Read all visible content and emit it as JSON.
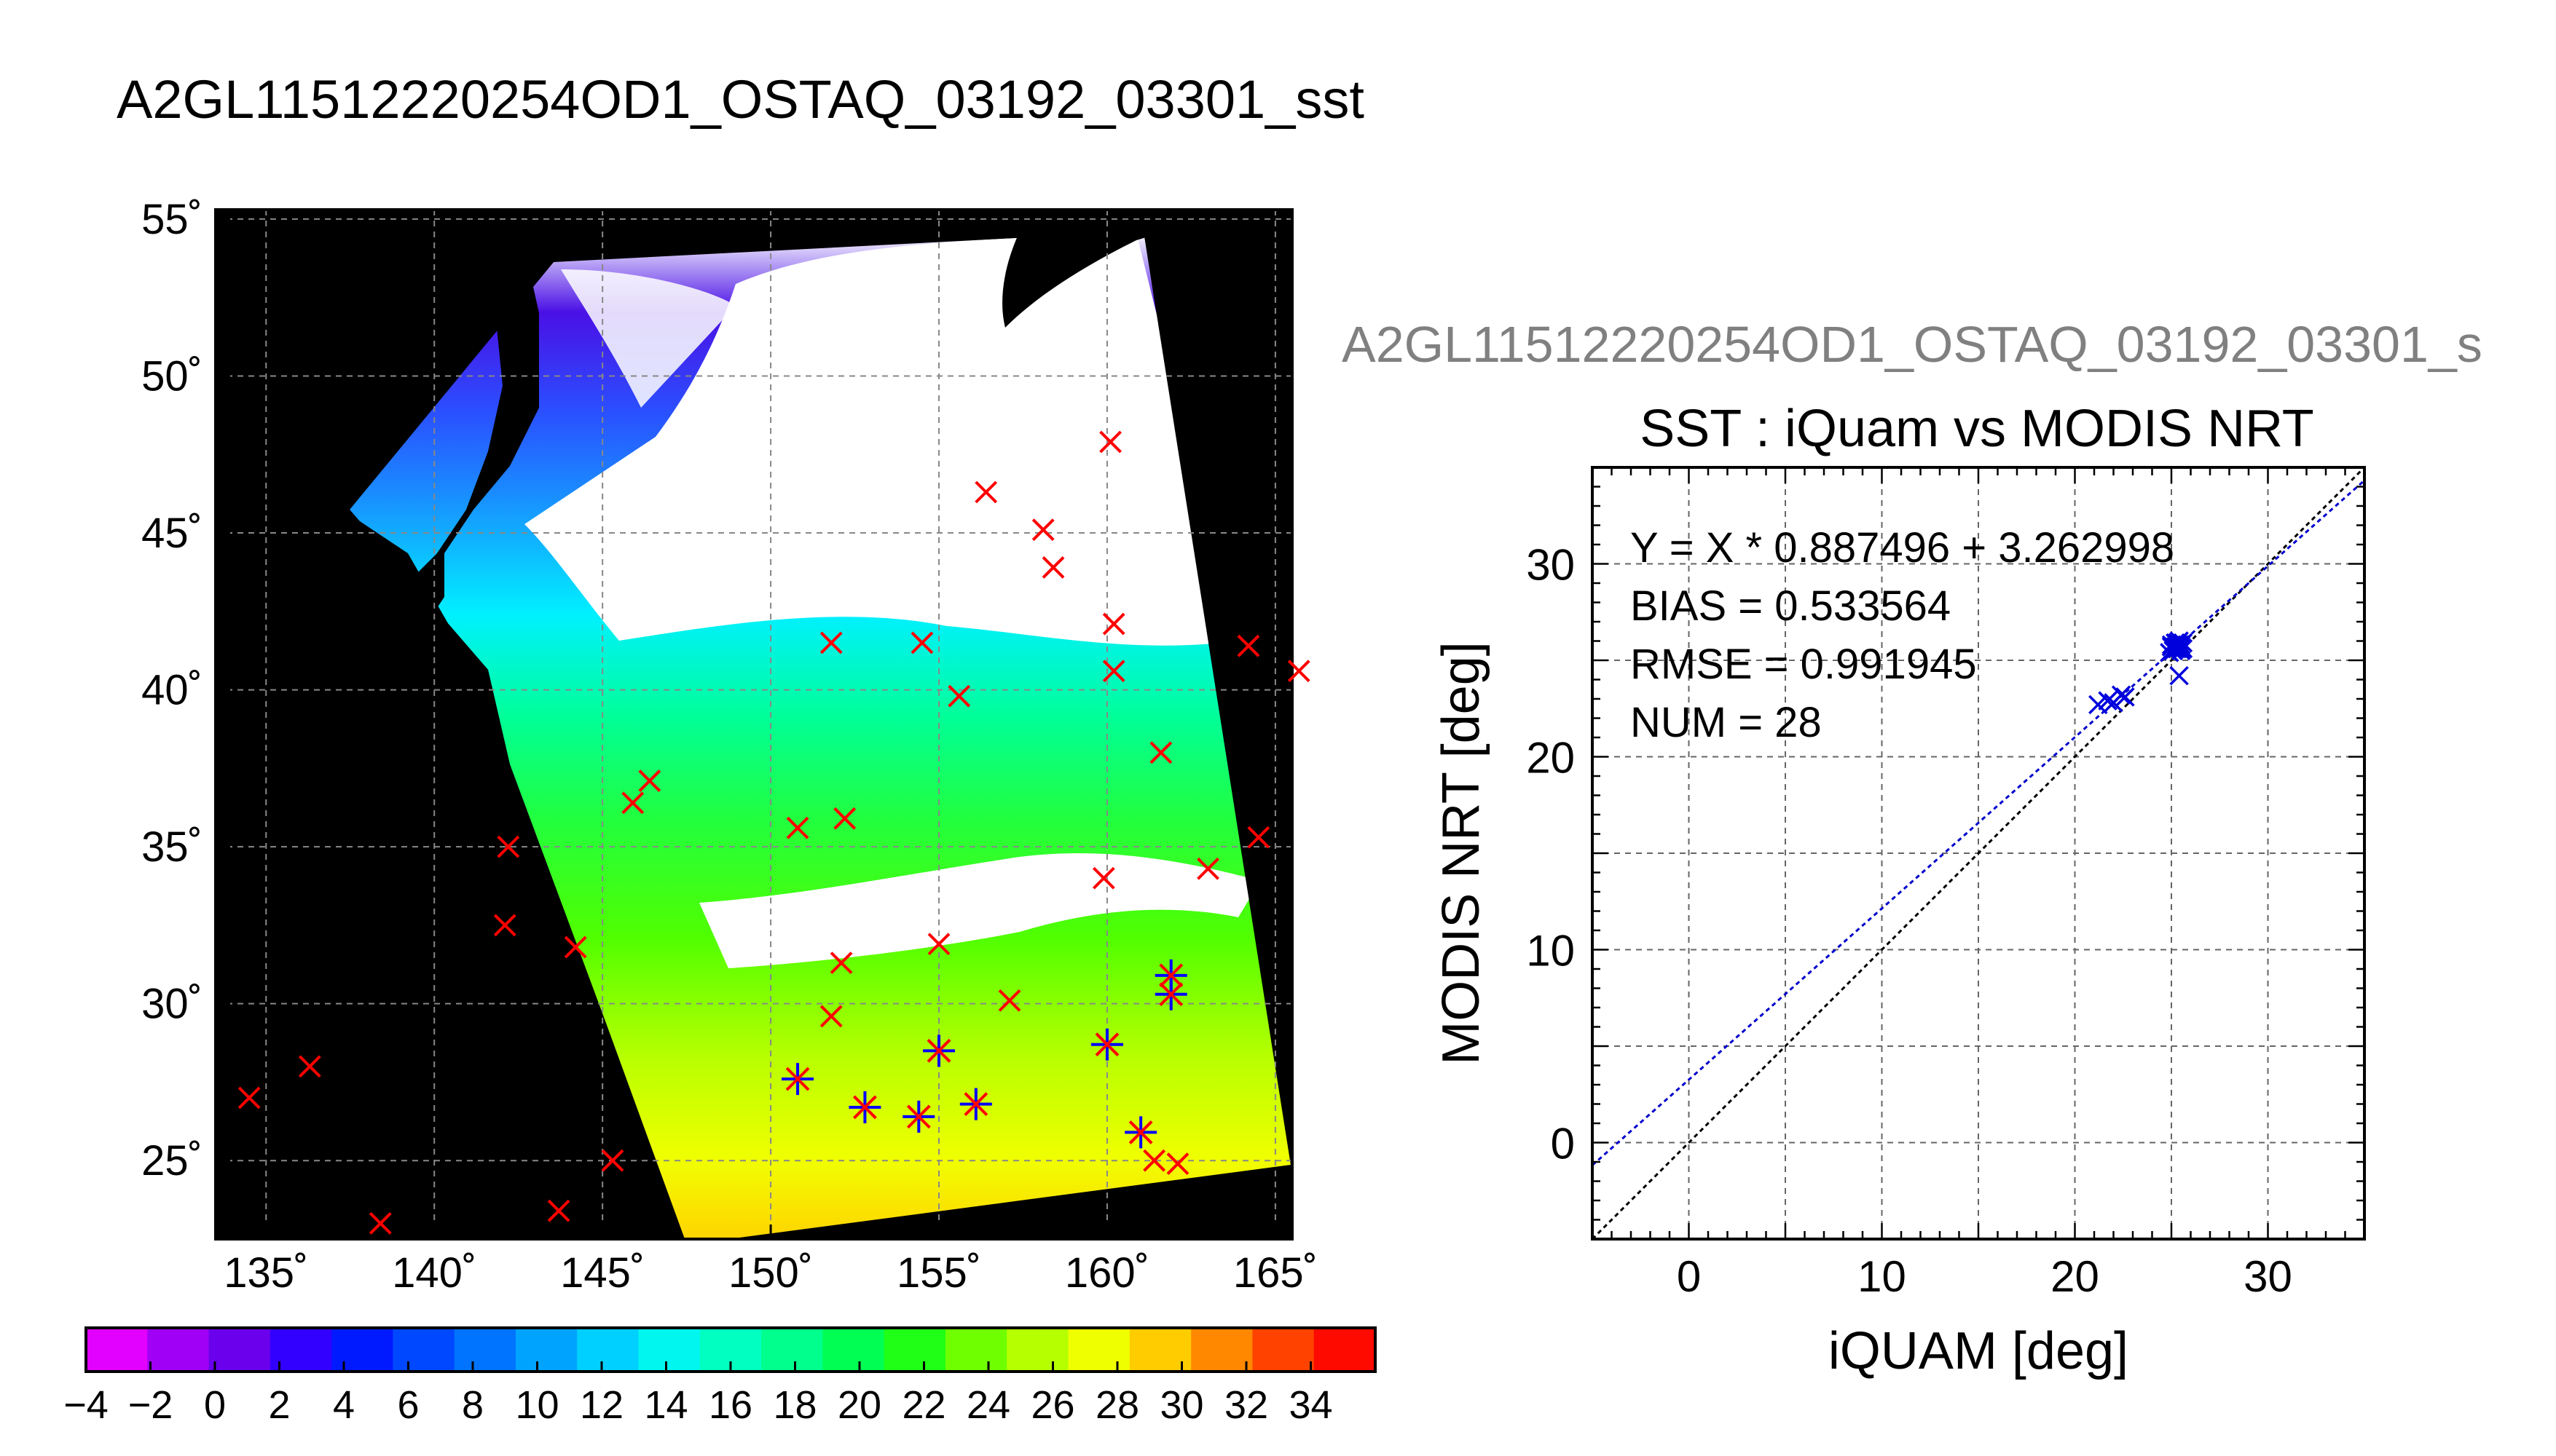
{
  "main_title": "A2GL11512220254OD1_OSTAQ_03192_03301_sst",
  "map": {
    "lon_range": [
      133.5,
      165.5
    ],
    "lat_range": [
      22.5,
      55.3
    ],
    "lon_ticks": [
      135,
      140,
      145,
      150,
      155,
      160,
      165
    ],
    "lat_ticks": [
      25,
      30,
      35,
      40,
      45,
      50,
      55
    ],
    "lon_tick_labels": [
      "135˚",
      "140˚",
      "145˚",
      "150˚",
      "155˚",
      "160˚",
      "165˚"
    ],
    "lat_tick_labels": [
      "25˚",
      "30˚",
      "35˚",
      "40˚",
      "45˚",
      "50˚",
      "55˚"
    ],
    "grid": true,
    "outside_color": "#ffffff",
    "land_color": "#000000",
    "cloud_color": "#ffffff",
    "marker_color_outside": "#ff0000",
    "marker_color_matched": "#0000ff",
    "matchup_markers": [
      [
        134.5,
        27.0
      ],
      [
        136.3,
        28.0
      ],
      [
        138.4,
        23.0
      ],
      [
        143.7,
        23.4
      ],
      [
        145.3,
        25.0
      ],
      [
        144.2,
        31.8
      ],
      [
        142.1,
        32.5
      ],
      [
        142.2,
        35.0
      ],
      [
        145.9,
        36.4
      ],
      [
        146.4,
        37.1
      ],
      [
        150.8,
        35.6
      ],
      [
        152.2,
        35.9
      ],
      [
        151.8,
        41.5
      ],
      [
        154.5,
        41.5
      ],
      [
        155.6,
        39.8
      ],
      [
        156.4,
        46.3
      ],
      [
        158.1,
        45.1
      ],
      [
        158.4,
        43.9
      ],
      [
        160.1,
        47.9
      ],
      [
        160.2,
        42.1
      ],
      [
        160.2,
        40.6
      ],
      [
        161.6,
        38.0
      ],
      [
        163.0,
        34.3
      ],
      [
        164.2,
        41.4
      ],
      [
        165.7,
        40.6
      ],
      [
        164.5,
        35.3
      ],
      [
        159.9,
        34.0
      ],
      [
        155.0,
        31.9
      ],
      [
        152.1,
        31.3
      ],
      [
        151.8,
        29.6
      ],
      [
        157.1,
        30.1
      ],
      [
        161.4,
        25.0
      ],
      [
        162.1,
        24.9
      ]
    ],
    "matched_markers": [
      [
        150.8,
        27.6
      ],
      [
        152.8,
        26.7
      ],
      [
        154.4,
        26.4
      ],
      [
        156.1,
        26.8
      ],
      [
        155.0,
        28.5
      ],
      [
        160.0,
        28.7
      ],
      [
        161.0,
        25.9
      ],
      [
        161.9,
        30.9
      ],
      [
        161.9,
        30.3
      ]
    ]
  },
  "colorbar": {
    "tick_labels": [
      "−4",
      "−2",
      "0",
      "2",
      "4",
      "6",
      "8",
      "10",
      "12",
      "14",
      "16",
      "18",
      "20",
      "22",
      "24",
      "26",
      "28",
      "30",
      "32",
      "34"
    ],
    "range": [
      -4,
      36
    ],
    "colors": [
      "#e200ff",
      "#a000f6",
      "#6a00ec",
      "#3200ff",
      "#001aff",
      "#0048ff",
      "#0074ff",
      "#00a4ff",
      "#00d0ff",
      "#00f6ee",
      "#00ffc0",
      "#00ff8c",
      "#00ff52",
      "#20ff16",
      "#70ff00",
      "#b6ff00",
      "#f0ff00",
      "#ffcc00",
      "#ff8800",
      "#ff4200",
      "#ff0a00"
    ]
  },
  "secondary_title": "A2GL11512220254OD1_OSTAQ_03192_03301_s",
  "chart_data": {
    "type": "scatter",
    "title": "SST : iQuam vs MODIS NRT",
    "xlabel": "iQUAM [deg]",
    "ylabel": "MODIS NRT [deg]",
    "xlim": [
      -5,
      35
    ],
    "ylim": [
      -5,
      35
    ],
    "xticks": [
      0,
      10,
      20,
      30
    ],
    "yticks": [
      0,
      10,
      20,
      30
    ],
    "grid": true,
    "stats": [
      "Y = X * 0.887496 + 3.262998",
      "BIAS = 0.533564",
      "RMSE = 0.991945",
      "NUM = 28"
    ],
    "fit_line": {
      "slope": 0.887496,
      "intercept": 3.262998,
      "color": "#0000cc"
    },
    "identity_line": {
      "slope": 1,
      "intercept": 0,
      "color": "#000000"
    },
    "marker_color": "#0000dd",
    "points": {
      "x": [
        21.2,
        21.7,
        22.0,
        22.4,
        22.6,
        24.9,
        25.0,
        25.1,
        25.2,
        25.3,
        25.3,
        25.4,
        25.5,
        25.6,
        25.4,
        25.2,
        25.0,
        25.5,
        25.1,
        25.3,
        25.6,
        25.2,
        25.4,
        25.5,
        25.3,
        25.1,
        25.4,
        25.5
      ],
      "y": [
        22.7,
        22.9,
        22.8,
        23.2,
        23.1,
        25.4,
        25.7,
        25.5,
        25.9,
        25.6,
        25.8,
        25.7,
        25.5,
        25.9,
        26.0,
        25.6,
        25.8,
        25.7,
        25.5,
        25.9,
        25.6,
        25.7,
        25.8,
        25.6,
        25.7,
        25.6,
        24.2,
        25.8
      ]
    }
  }
}
